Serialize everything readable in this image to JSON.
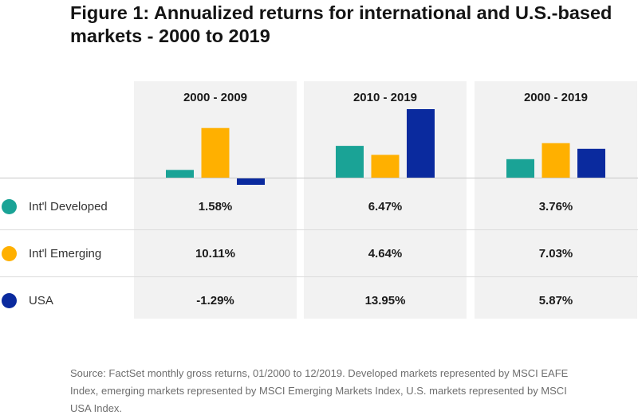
{
  "title": "Figure 1: Annualized returns for international and U.S.-based markets - 2000 to 2019",
  "chart_data": {
    "type": "bar",
    "title": "Figure 1: Annualized returns for international and U.S.-based markets - 2000 to 2019",
    "categories": [
      "2000 - 2009",
      "2010 - 2019",
      "2000 - 2019"
    ],
    "series": [
      {
        "name": "Int'l Developed",
        "color": "#1aa396",
        "values": [
          1.58,
          6.47,
          3.76
        ],
        "labels": [
          "1.58%",
          "6.47%",
          "3.76%"
        ]
      },
      {
        "name": "Int'l Emerging",
        "color": "#ffb000",
        "values": [
          10.11,
          4.64,
          7.03
        ],
        "labels": [
          "10.11%",
          "4.64%",
          "7.03%"
        ]
      },
      {
        "name": "USA",
        "color": "#0a2a9e",
        "values": [
          -1.29,
          13.95,
          5.87
        ],
        "labels": [
          "-1.29%",
          "13.95%",
          "5.87%"
        ]
      }
    ],
    "xlabel": "",
    "ylabel": "",
    "ylim": [
      -1.29,
      13.95
    ],
    "grid": false,
    "legend": "left"
  },
  "source": "Source: FactSet monthly gross returns, 01/2000 to 12/2019. Developed markets represented by MSCI EAFE Index, emerging markets represented by MSCI Emerging Markets Index, U.S. markets represented by MSCI USA Index."
}
